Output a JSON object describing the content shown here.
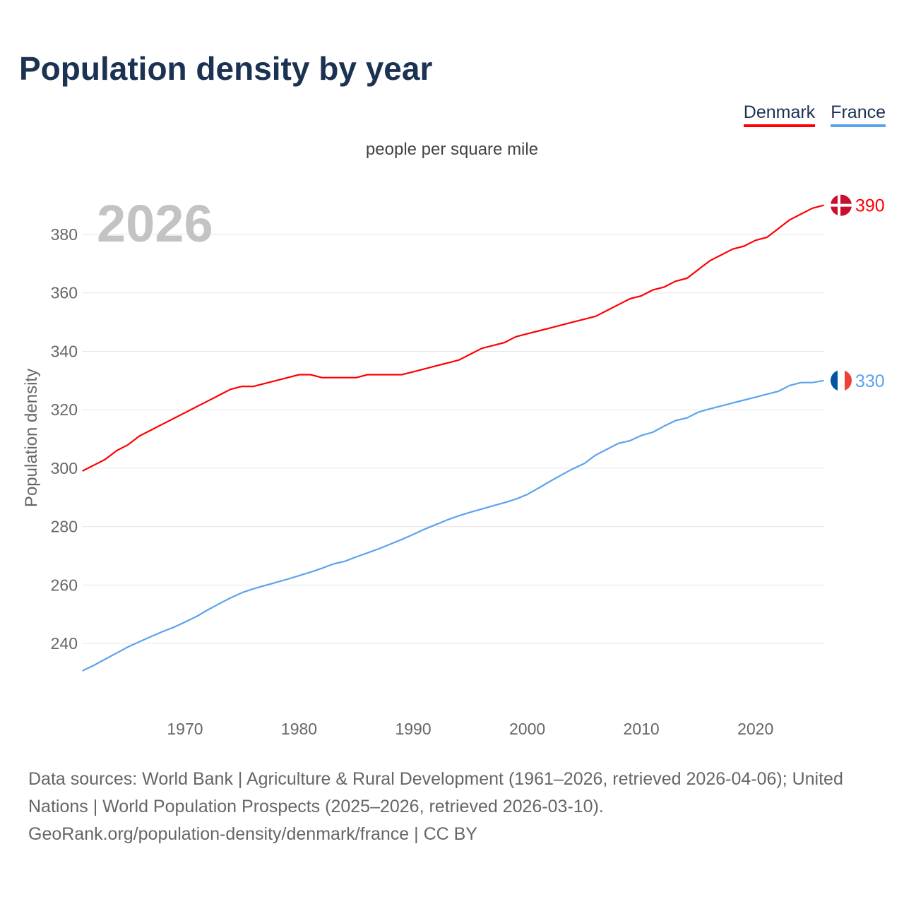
{
  "title": "Population density by year",
  "legend": [
    "Denmark",
    "France"
  ],
  "footer": {
    "line1": "Data sources: World Bank | Agriculture & Rural Development (1961–2026, retrieved 2026-04-06); United Nations | World Population Prospects (2025–2026, retrieved 2026-03-10).",
    "line2": "GeoRank.org/population-density/denmark/france | CC BY"
  },
  "chart_data": {
    "type": "line",
    "title": "Population density by year",
    "subtitle": "people per square mile",
    "watermark_year": "2026",
    "xlabel": "",
    "ylabel": "Population density",
    "xlim": [
      1961,
      2026
    ],
    "ylim": [
      220,
      395
    ],
    "xticks": [
      1970,
      1980,
      1990,
      2000,
      2010,
      2020
    ],
    "yticks": [
      240,
      260,
      280,
      300,
      320,
      340,
      360,
      380
    ],
    "grid": true,
    "legend_position": "top-right",
    "series": [
      {
        "name": "Denmark",
        "color": "#ff0000",
        "end_label": "390",
        "x_start": 1961,
        "values": [
          299,
          301,
          303,
          306,
          308,
          311,
          313,
          315,
          317,
          319,
          321,
          323,
          325,
          327,
          328,
          328,
          329,
          330,
          331,
          332,
          332,
          331,
          331,
          331,
          331,
          332,
          332,
          332,
          332,
          333,
          334,
          335,
          336,
          337,
          339,
          341,
          342,
          343,
          345,
          346,
          347,
          348,
          349,
          350,
          351,
          352,
          354,
          356,
          358,
          359,
          361,
          362,
          364,
          365,
          368,
          371,
          373,
          375,
          376,
          378,
          379,
          382,
          385,
          387,
          389,
          390
        ]
      },
      {
        "name": "France",
        "color": "#5aa4ee",
        "end_label": "330",
        "x_start": 1961,
        "values": [
          230.6,
          232.5,
          234.6,
          236.7,
          238.8,
          240.6,
          242.3,
          244,
          245.5,
          247.3,
          249.2,
          251.5,
          253.6,
          255.6,
          257.4,
          258.7,
          259.8,
          260.9,
          262,
          263.2,
          264.4,
          265.7,
          267.2,
          268.1,
          269.6,
          271,
          272.4,
          274,
          275.6,
          277.3,
          279.1,
          280.7,
          282.3,
          283.7,
          284.9,
          286,
          287.1,
          288.2,
          289.4,
          291,
          293.2,
          295.5,
          297.7,
          299.8,
          301.6,
          304.5,
          306.5,
          308.5,
          309.4,
          311.2,
          312.3,
          314.4,
          316.3,
          317.2,
          319.2,
          320.3,
          321.3,
          322.3,
          323.3,
          324.3,
          325.3,
          326.3,
          328.3,
          329.3,
          329.3,
          330
        ]
      }
    ]
  }
}
